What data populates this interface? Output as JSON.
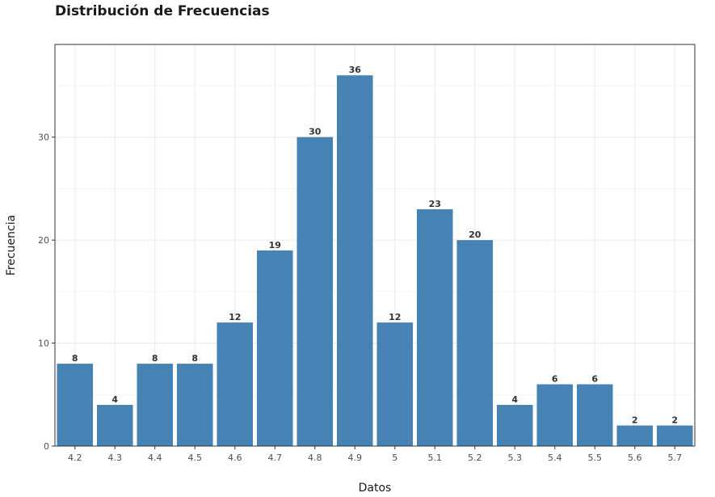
{
  "chart_data": {
    "type": "bar",
    "title": "Distribución de Frecuencias",
    "xlabel": "Datos",
    "ylabel": "Frecuencia",
    "categories": [
      "4.2",
      "4.3",
      "4.4",
      "4.5",
      "4.6",
      "4.7",
      "4.8",
      "4.9",
      "5",
      "5.1",
      "5.2",
      "5.3",
      "5.4",
      "5.5",
      "5.6",
      "5.7"
    ],
    "values": [
      8,
      4,
      8,
      8,
      12,
      19,
      30,
      36,
      12,
      23,
      20,
      4,
      6,
      6,
      2,
      2
    ],
    "ylim": [
      0,
      39
    ],
    "yticks": [
      0,
      10,
      20,
      30
    ],
    "grid": true,
    "bar_color": "#4682b4",
    "data_labels": true
  }
}
